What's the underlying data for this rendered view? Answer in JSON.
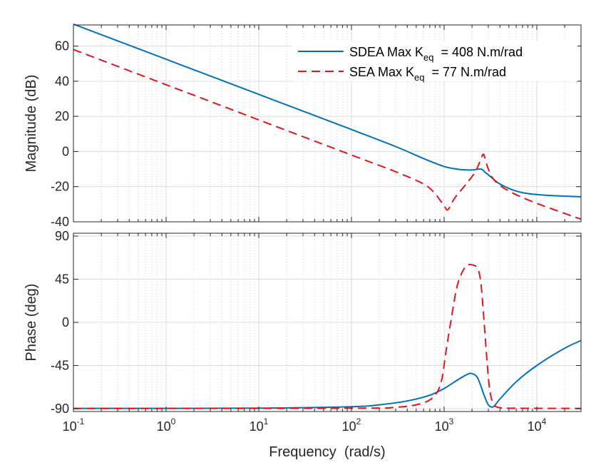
{
  "chart_data": [
    {
      "type": "line",
      "panel": "magnitude",
      "x_scale": "log",
      "xlim": [
        0.1,
        30000
      ],
      "ylim": [
        -40,
        72
      ],
      "yticks": [
        -40,
        -20,
        0,
        20,
        40,
        60
      ],
      "ylabel": "Magnitude (dB)",
      "grid": true,
      "legend_position": "top-right",
      "series": [
        {
          "name": "SDEA",
          "legend": {
            "prefix": "SDEA Max K",
            "sub": "eq",
            "suffix": "  = 408 N.m/rad"
          },
          "color": "#0072BD",
          "dash": "solid",
          "x": [
            0.1,
            1,
            10,
            100,
            300,
            600,
            1000,
            1500,
            2000,
            2500,
            2800,
            3200,
            4000,
            6000,
            10000,
            30000
          ],
          "y": [
            72.5,
            52.5,
            32.5,
            12.5,
            2.8,
            -4.0,
            -8.5,
            -10.3,
            -10.5,
            -10.0,
            -12.0,
            -14.5,
            -18.5,
            -22.5,
            -24.5,
            -25.8
          ]
        },
        {
          "name": "SEA",
          "legend": {
            "prefix": "SEA Max K",
            "sub": "eq",
            "suffix": "  = 77 N.m/rad"
          },
          "color": "#E0161B",
          "dash": "dashed",
          "x": [
            0.1,
            1,
            10,
            100,
            300,
            600,
            800,
            1000,
            1100,
            1300,
            1700,
            2200,
            2600,
            2750,
            3000,
            3500,
            5000,
            10000,
            30000
          ],
          "y": [
            58.0,
            38.0,
            18.0,
            -2.0,
            -11.5,
            -18.5,
            -24.0,
            -31.0,
            -33.0,
            -26.5,
            -19.0,
            -11.0,
            -2.0,
            -3.5,
            -10.0,
            -16.5,
            -22.5,
            -29.5,
            -38.5
          ]
        }
      ]
    },
    {
      "type": "line",
      "panel": "phase",
      "x_scale": "log",
      "xlim": [
        0.1,
        30000
      ],
      "ylim": [
        -93,
        93
      ],
      "yticks": [
        -90,
        -45,
        0,
        45,
        90
      ],
      "xticks": [
        {
          "value": 0.1,
          "base": "10",
          "exp": "-1"
        },
        {
          "value": 1,
          "base": "10",
          "exp": "0"
        },
        {
          "value": 10,
          "base": "10",
          "exp": "1"
        },
        {
          "value": 100,
          "base": "10",
          "exp": "2"
        },
        {
          "value": 1000,
          "base": "10",
          "exp": "3"
        },
        {
          "value": 10000,
          "base": "10",
          "exp": "4"
        }
      ],
      "xlabel": "Frequency  (rad/s)",
      "ylabel": "Phase (deg)",
      "grid": true,
      "series": [
        {
          "name": "SDEA",
          "color": "#0072BD",
          "dash": "solid",
          "x": [
            0.1,
            10,
            100,
            200,
            400,
            700,
            1000,
            1400,
            1800,
            2000,
            2300,
            2700,
            3000,
            3400,
            4000,
            6000,
            10000,
            20000,
            30000
          ],
          "y": [
            -89.8,
            -89.5,
            -88,
            -86,
            -82,
            -76,
            -69,
            -60,
            -54,
            -53.5,
            -58,
            -76,
            -86,
            -88,
            -80,
            -62,
            -45,
            -27,
            -19
          ]
        },
        {
          "name": "SEA",
          "color": "#E0161B",
          "dash": "dashed",
          "x": [
            0.1,
            100,
            300,
            500,
            700,
            850,
            950,
            1050,
            1200,
            1400,
            1700,
            2000,
            2300,
            2500,
            2700,
            2900,
            3100,
            3400,
            4000,
            6000,
            30000
          ],
          "y": [
            -89.8,
            -89.6,
            -88.5,
            -86,
            -81,
            -72,
            -58,
            -30,
            5,
            40,
            58,
            60,
            56,
            40,
            0,
            -40,
            -70,
            -85,
            -89,
            -89.6,
            -89.8
          ]
        }
      ]
    }
  ]
}
